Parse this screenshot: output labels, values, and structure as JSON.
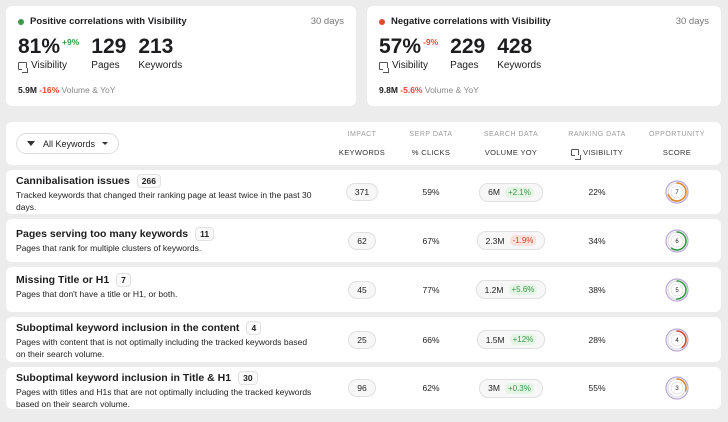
{
  "positive": {
    "title": "Positive correlations with Visibility",
    "period": "30 days",
    "visibility": "81%",
    "visibility_delta": "+9%",
    "visibility_label": "Visibility",
    "pages": "129",
    "pages_label": "Pages",
    "keywords": "213",
    "keywords_label": "Keywords",
    "volume": "5.9M",
    "volume_delta": "-16%",
    "volume_text": "Volume & YoY",
    "color": "#3a9a48"
  },
  "negative": {
    "title": "Negative correlations with Visibility",
    "period": "30 days",
    "visibility": "57%",
    "visibility_delta": "-9%",
    "visibility_label": "Visibility",
    "pages": "229",
    "pages_label": "Pages",
    "keywords": "428",
    "keywords_label": "Keywords",
    "volume": "9.8M",
    "volume_delta": "-5.6%",
    "volume_text": "Volume & YoY",
    "color": "#e04a2b"
  },
  "filter": {
    "label": "All Keywords"
  },
  "columns": [
    {
      "group": "IMPACT",
      "sub": "KEYWORDS"
    },
    {
      "group": "SERP DATA",
      "sub": "% CLICKS"
    },
    {
      "group": "SEARCH DATA",
      "sub": "VOLUME YOY"
    },
    {
      "group": "RANKING DATA",
      "sub": "VISIBILITY"
    },
    {
      "group": "OPPORTUNITY",
      "sub": "SCORE"
    }
  ],
  "rows": [
    {
      "title": "Cannibalisation issues",
      "count": "266",
      "desc": "Tracked keywords that changed their ranking page at least twice in the past 30 days.",
      "keywords": "371",
      "clicks": "59%",
      "volume": "6M",
      "volume_change": "+2.1%",
      "direction": "up",
      "visibility": "22%",
      "score": "7",
      "score_color": "#e0862b"
    },
    {
      "title": "Pages serving too many keywords",
      "count": "11",
      "desc": "Pages that rank for multiple clusters of keywords.",
      "keywords": "62",
      "clicks": "67%",
      "volume": "2.3M",
      "volume_change": "-1.9%",
      "direction": "down",
      "visibility": "34%",
      "score": "6",
      "score_color": "#3a9a48"
    },
    {
      "title": "Missing Title or H1",
      "count": "7",
      "desc": "Pages that don't have a title or H1, or both.",
      "keywords": "45",
      "clicks": "77%",
      "volume": "1.2M",
      "volume_change": "+5.6%",
      "direction": "up",
      "visibility": "38%",
      "score": "5",
      "score_color": "#3a9a48"
    },
    {
      "title": "Suboptimal keyword inclusion in the content",
      "count": "4",
      "desc": "Pages with content that is not optimally including the tracked keywords based on their search volume.",
      "keywords": "25",
      "clicks": "66%",
      "volume": "1.5M",
      "volume_change": "+12%",
      "direction": "up",
      "visibility": "28%",
      "score": "4",
      "score_color": "#d8452a"
    },
    {
      "title": "Suboptimal keyword inclusion in Title & H1",
      "count": "30",
      "desc": "Pages with titles and H1s that are not optimally including the tracked keywords based on their search volume.",
      "keywords": "96",
      "clicks": "62%",
      "volume": "3M",
      "volume_change": "+0.3%",
      "direction": "up",
      "visibility": "55%",
      "score": "3",
      "score_color": "#e0862b"
    }
  ]
}
